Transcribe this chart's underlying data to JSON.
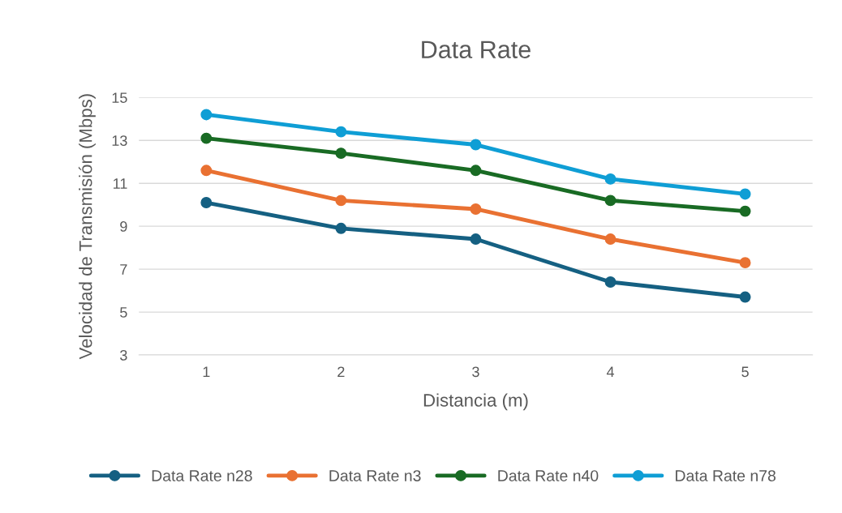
{
  "chart_data": {
    "type": "line",
    "title": "Data Rate",
    "xlabel": "Distancia (m)",
    "ylabel": "Velocidad de Transmisión (Mbps)",
    "categories": [
      "1",
      "2",
      "3",
      "4",
      "5"
    ],
    "series": [
      {
        "name": "Data Rate n28",
        "color": "#156082",
        "values": [
          10.1,
          8.9,
          8.4,
          6.4,
          5.7
        ]
      },
      {
        "name": "Data Rate n3",
        "color": "#e97132",
        "values": [
          11.6,
          10.2,
          9.8,
          8.4,
          7.3
        ]
      },
      {
        "name": "Data Rate n40",
        "color": "#196b24",
        "values": [
          13.1,
          12.4,
          11.6,
          10.2,
          9.7
        ]
      },
      {
        "name": "Data Rate n78",
        "color": "#0f9ed5",
        "values": [
          14.2,
          13.4,
          12.8,
          11.2,
          10.5
        ]
      }
    ],
    "ylim": [
      3,
      15
    ],
    "yticks": [
      3,
      5,
      7,
      9,
      11,
      13,
      15
    ],
    "grid": "y",
    "legend": "bottom",
    "marker": "circle",
    "line_style": "solid"
  }
}
